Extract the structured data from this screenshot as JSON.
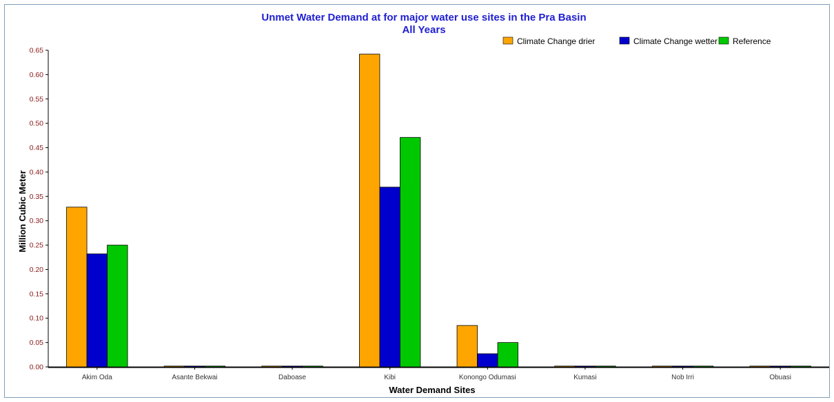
{
  "chart_data": {
    "type": "bar",
    "title": "Unmet Water Demand at for major water use sites in the Pra Basin",
    "subtitle": "All Years",
    "xlabel": "Water Demand Sites",
    "ylabel": "Million Cubic Meter",
    "ylim": [
      0,
      0.65
    ],
    "yticks": [
      "0.00",
      "0.05",
      "0.10",
      "0.15",
      "0.20",
      "0.25",
      "0.30",
      "0.35",
      "0.40",
      "0.45",
      "0.50",
      "0.55",
      "0.60",
      "0.65"
    ],
    "grid": false,
    "legend_position": "top-right",
    "categories": [
      "Akim Oda",
      "Asante Bekwai",
      "Daboase",
      "Kibi",
      "Konongo Odumasi",
      "Kumasi",
      "Nob Irri",
      "Obuasi"
    ],
    "series": [
      {
        "name": "Climate Change drier",
        "color": "#ffa500",
        "values": [
          0.328,
          0.0,
          0.0,
          0.642,
          0.085,
          0.0,
          0.0,
          0.0
        ]
      },
      {
        "name": "Climate Change wetter",
        "color": "#0000cd",
        "values": [
          0.232,
          0.0,
          0.0,
          0.369,
          0.027,
          0.0,
          0.0,
          0.0
        ]
      },
      {
        "name": "Reference",
        "color": "#00c800",
        "values": [
          0.25,
          0.0,
          0.0,
          0.471,
          0.05,
          0.0,
          0.0,
          0.0
        ]
      }
    ]
  }
}
